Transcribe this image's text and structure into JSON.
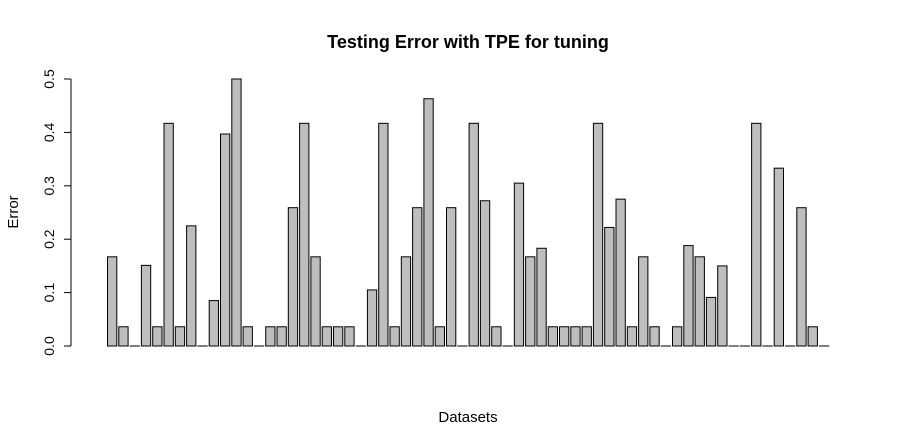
{
  "chart_data": {
    "type": "bar",
    "title": "Testing Error with TPE for tuning",
    "xlabel": "Datasets",
    "ylabel": "Error",
    "ylim": [
      0,
      0.5
    ],
    "yticks": [
      "0.0",
      "0.1",
      "0.2",
      "0.3",
      "0.4",
      "0.5"
    ],
    "bar_color": "#bebebe",
    "border_color": "#000000",
    "values": [
      0.167,
      0.036,
      0,
      0.151,
      0.036,
      0.417,
      0.036,
      0.225,
      0,
      0.085,
      0.397,
      0.5,
      0.036,
      0,
      0.036,
      0.036,
      0.259,
      0.417,
      0.167,
      0.036,
      0.036,
      0.036,
      0,
      0.105,
      0.417,
      0.036,
      0.167,
      0.259,
      0.463,
      0.036,
      0.259,
      0,
      0.417,
      0.272,
      0.036,
      0,
      0.305,
      0.167,
      0.183,
      0.036,
      0.036,
      0.036,
      0.036,
      0.417,
      0.222,
      0.275,
      0.036,
      0.167,
      0.036,
      0,
      0.036,
      0.188,
      0.167,
      0.091,
      0.15,
      0,
      0,
      0.417,
      0,
      0.333,
      0,
      0.259,
      0.036,
      0
    ]
  }
}
